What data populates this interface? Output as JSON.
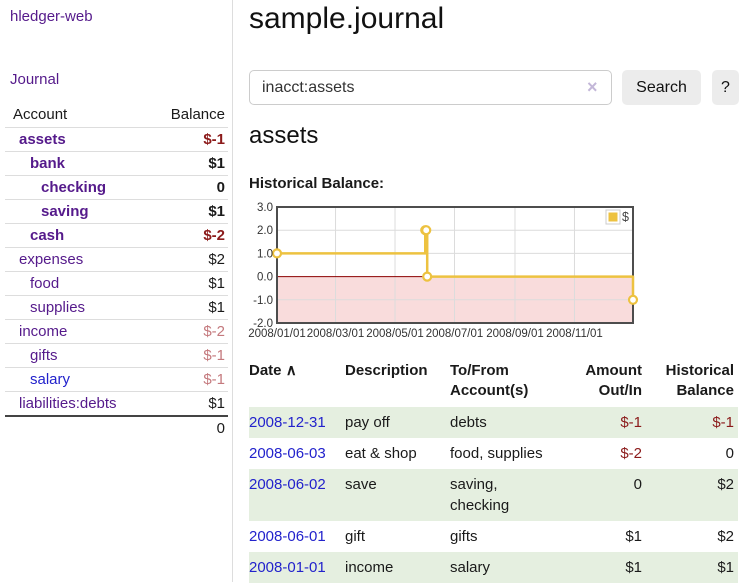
{
  "app": {
    "brand": "hledger-web"
  },
  "sidebar": {
    "nav_journal": "Journal",
    "accounts_table": {
      "headers": {
        "account": "Account",
        "balance": "Balance"
      },
      "rows": [
        {
          "name": "assets",
          "level": 1,
          "bold": true,
          "link_style": "visited",
          "balance": "$-1",
          "balance_style": "negative-strong"
        },
        {
          "name": "bank",
          "level": 2,
          "bold": true,
          "link_style": "visited",
          "balance": "$1",
          "balance_style": "normal"
        },
        {
          "name": "checking",
          "level": 3,
          "bold": true,
          "link_style": "visited",
          "balance": "0",
          "balance_style": "normal"
        },
        {
          "name": "saving",
          "level": 3,
          "bold": true,
          "link_style": "visited",
          "balance": "$1",
          "balance_style": "normal"
        },
        {
          "name": "cash",
          "level": 2,
          "bold": true,
          "link_style": "visited",
          "balance": "$-2",
          "balance_style": "negative-strong"
        },
        {
          "name": "expenses",
          "level": 1,
          "bold": false,
          "link_style": "visited",
          "balance": "$2",
          "balance_style": "normal"
        },
        {
          "name": "food",
          "level": 2,
          "bold": false,
          "link_style": "visited",
          "balance": "$1",
          "balance_style": "normal"
        },
        {
          "name": "supplies",
          "level": 2,
          "bold": false,
          "link_style": "visited",
          "balance": "$1",
          "balance_style": "normal"
        },
        {
          "name": "income",
          "level": 1,
          "bold": false,
          "link_style": "visited",
          "balance": "$-2",
          "balance_style": "negative-soft"
        },
        {
          "name": "gifts",
          "level": 2,
          "bold": false,
          "link_style": "visited",
          "balance": "$-1",
          "balance_style": "negative-soft"
        },
        {
          "name": "salary",
          "level": 2,
          "bold": false,
          "link_style": "unvisited",
          "balance": "$-1",
          "balance_style": "negative-soft"
        },
        {
          "name": "liabilities:debts",
          "level": 1,
          "bold": false,
          "link_style": "visited",
          "balance": "$1",
          "balance_style": "normal"
        }
      ],
      "total": "0"
    }
  },
  "header": {
    "title": "sample.journal"
  },
  "search": {
    "value": "inacct:assets",
    "clear_icon": "×",
    "button_label": "Search",
    "help_label": "?"
  },
  "account_page": {
    "title": "assets",
    "chart_label": "Historical Balance:"
  },
  "chart_data": {
    "type": "line",
    "title": "Historical Balance:",
    "step": true,
    "series": [
      {
        "name": "$",
        "points": [
          {
            "date": "2008-01-01",
            "day": 0,
            "value": 1
          },
          {
            "date": "2008-06-01",
            "day": 152,
            "value": 2
          },
          {
            "date": "2008-06-02",
            "day": 153,
            "value": 2
          },
          {
            "date": "2008-06-03",
            "day": 154,
            "value": 0
          },
          {
            "date": "2008-12-31",
            "day": 365,
            "value": -1
          }
        ]
      }
    ],
    "x_ticks": [
      {
        "day": 0,
        "label": "2008/01/01"
      },
      {
        "day": 60,
        "label": "2008/03/01"
      },
      {
        "day": 121,
        "label": "2008/05/01"
      },
      {
        "day": 182,
        "label": "2008/07/01"
      },
      {
        "day": 244,
        "label": "2008/09/01"
      },
      {
        "day": 305,
        "label": "2008/11/01"
      }
    ],
    "y_ticks": [
      {
        "value": 3,
        "label": "3.0"
      },
      {
        "value": 2,
        "label": "2.0"
      },
      {
        "value": 1,
        "label": "1.0"
      },
      {
        "value": 0,
        "label": "0.0"
      },
      {
        "value": -1,
        "label": "-1.0"
      },
      {
        "value": -2,
        "label": "-2.0"
      }
    ],
    "xlim_days": [
      0,
      365
    ],
    "ylim": [
      -2,
      3
    ],
    "legend": {
      "label": "$",
      "position": "top-right"
    },
    "negative_region_shaded": true,
    "grid": true
  },
  "register_table": {
    "headers": {
      "date": "Date",
      "sort_icon": "∧",
      "description": "Description",
      "accounts": "To/From Account(s)",
      "amount": "Amount Out/In",
      "balance": "Historical Balance"
    },
    "rows": [
      {
        "date": "2008-12-31",
        "description": "pay off",
        "accounts": "debts",
        "amount": "$-1",
        "amount_style": "negative",
        "balance": "$-1",
        "balance_style": "negative"
      },
      {
        "date": "2008-06-03",
        "description": "eat & shop",
        "accounts": "food, supplies",
        "amount": "$-2",
        "amount_style": "negative",
        "balance": "0",
        "balance_style": "normal"
      },
      {
        "date": "2008-06-02",
        "description": "save",
        "accounts": "saving, checking",
        "amount": "0",
        "amount_style": "normal",
        "balance": "$2",
        "balance_style": "normal"
      },
      {
        "date": "2008-06-01",
        "description": "gift",
        "accounts": "gifts",
        "amount": "$1",
        "amount_style": "normal",
        "balance": "$2",
        "balance_style": "normal"
      },
      {
        "date": "2008-01-01",
        "description": "income",
        "accounts": "salary",
        "amount": "$1",
        "amount_style": "normal",
        "balance": "$1",
        "balance_style": "normal"
      }
    ]
  },
  "colors": {
    "link_visited_purple": "#551a8b",
    "link_unvisited_blue": "#2222cc",
    "negative_strong": "#8b1a1a",
    "negative_soft": "#c4797d",
    "series_gold": "#edc240",
    "negative_region_pink": "#f9dcdc",
    "zero_line_dark_red": "#8b0000",
    "grid_gray": "#dcdcdc",
    "chart_border": "#4d4d4d",
    "row_stripe_green": "#e5efe0",
    "button_gray": "#ececec",
    "divider_gray": "#dddddd",
    "clear_icon_lavender": "#c3b7d8"
  }
}
